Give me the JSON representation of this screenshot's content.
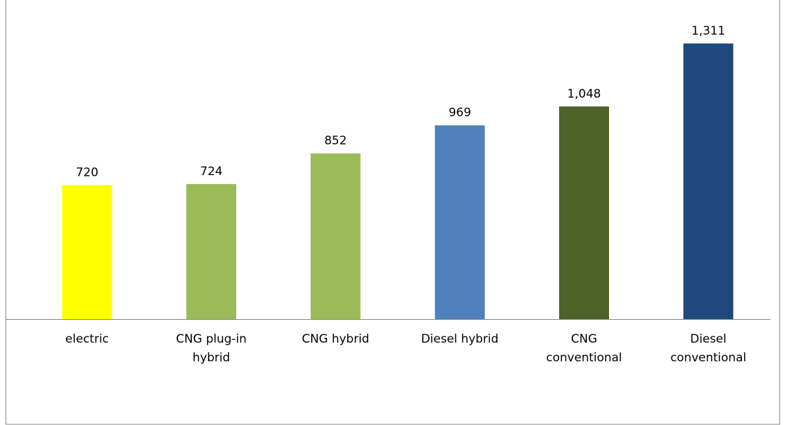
{
  "chart_data": {
    "type": "bar",
    "categories": [
      "electric",
      "CNG plug-in hybrid",
      "CNG hybrid",
      "Diesel hybrid",
      "CNG conventional",
      "Diesel conventional"
    ],
    "values": [
      720,
      724,
      852,
      969,
      1048,
      1311
    ],
    "value_labels": [
      "720",
      "724",
      "852",
      "969",
      "1,048",
      "1,311"
    ],
    "colors": [
      "#ffff00",
      "#9bbb59",
      "#9bbb59",
      "#4f81bd",
      "#4f6228",
      "#1f497d"
    ],
    "ylim": [
      160,
      1400
    ]
  }
}
